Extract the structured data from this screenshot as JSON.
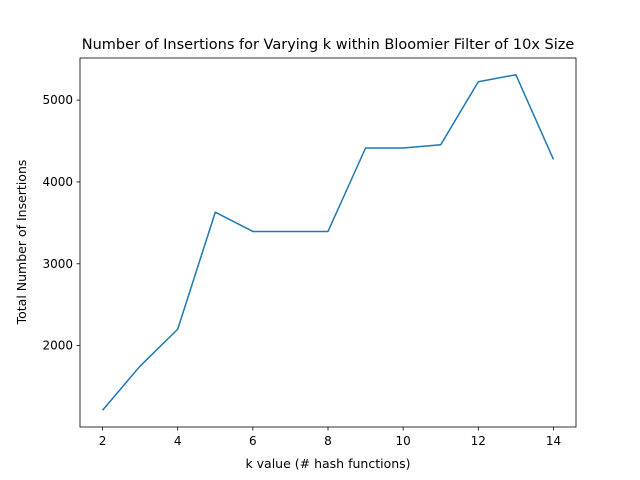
{
  "chart_data": {
    "type": "line",
    "title": "Number of Insertions for Varying k within Bloomier Filter of 10x Size",
    "xlabel": "k value (# hash functions)",
    "ylabel": "Total Number of Insertions",
    "x": [
      2,
      3,
      4,
      5,
      6,
      7,
      8,
      9,
      10,
      11,
      12,
      13,
      14
    ],
    "series": [
      {
        "name": "",
        "color": "#1f77b4",
        "values": [
          1210,
          1750,
          2200,
          3630,
          3395,
          3395,
          3395,
          4415,
          4415,
          4455,
          5225,
          5310,
          4275
        ]
      }
    ],
    "xlim": [
      1.4,
      14.6
    ],
    "ylim": [
      1005,
      5515
    ],
    "xticks": [
      2,
      4,
      6,
      8,
      10,
      12,
      14
    ],
    "yticks": [
      2000,
      3000,
      4000,
      5000
    ],
    "grid": false,
    "legend": "none"
  }
}
